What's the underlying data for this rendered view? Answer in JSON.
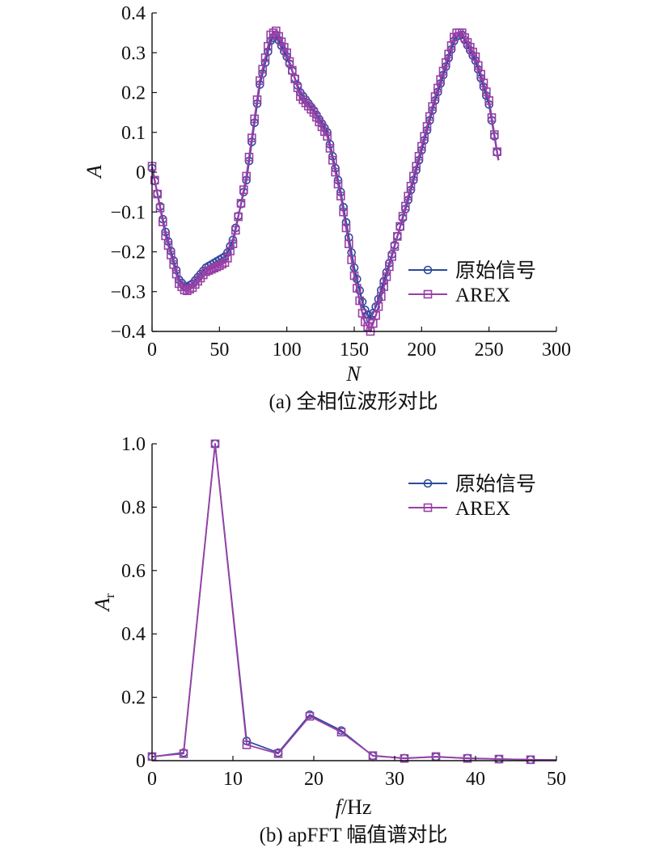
{
  "chart_data": [
    {
      "type": "line",
      "caption": "(a) 全相位波形对比",
      "xlabel": "N",
      "ylabel": "A",
      "xlim": [
        0,
        300
      ],
      "ylim": [
        -0.4,
        0.4
      ],
      "xticks": [
        0,
        50,
        100,
        150,
        200,
        250,
        300
      ],
      "yticks": [
        -0.4,
        -0.3,
        -0.2,
        -0.1,
        0,
        0.1,
        0.2,
        0.3,
        0.4
      ],
      "xtick_labels": [
        "0",
        "50",
        "100",
        "150",
        "200",
        "250",
        "300"
      ],
      "ytick_labels": [
        "−0.4",
        "−0.3",
        "−0.2",
        "−0.1",
        "0",
        "0.1",
        "0.2",
        "0.3",
        "0.4"
      ],
      "legend": "center-right",
      "grid": false,
      "series": [
        {
          "name": "原始信号",
          "color": "#2a4a9c",
          "marker": "circle",
          "x": [
            0,
            10,
            20,
            25,
            30,
            40,
            50,
            55,
            60,
            70,
            80,
            88,
            92,
            100,
            110,
            120,
            130,
            140,
            150,
            157,
            162,
            167,
            175,
            190,
            210,
            225,
            230,
            240,
            250,
            257
          ],
          "y": [
            0.01,
            -0.15,
            -0.27,
            -0.29,
            -0.28,
            -0.24,
            -0.22,
            -0.21,
            -0.17,
            -0.02,
            0.22,
            0.33,
            0.345,
            0.29,
            0.2,
            0.155,
            0.1,
            -0.05,
            -0.24,
            -0.34,
            -0.37,
            -0.33,
            -0.24,
            -0.07,
            0.18,
            0.34,
            0.345,
            0.28,
            0.17,
            0.03
          ]
        },
        {
          "name": "AREX",
          "color": "#9a3fa6",
          "marker": "square",
          "x": [
            0,
            10,
            20,
            25,
            30,
            40,
            50,
            55,
            60,
            70,
            80,
            88,
            92,
            100,
            110,
            120,
            130,
            140,
            150,
            157,
            162,
            167,
            175,
            190,
            210,
            225,
            230,
            240,
            250,
            257
          ],
          "y": [
            0.015,
            -0.16,
            -0.28,
            -0.3,
            -0.29,
            -0.25,
            -0.235,
            -0.225,
            -0.18,
            -0.01,
            0.23,
            0.345,
            0.355,
            0.3,
            0.19,
            0.15,
            0.09,
            -0.06,
            -0.26,
            -0.37,
            -0.4,
            -0.35,
            -0.25,
            -0.06,
            0.19,
            0.35,
            0.35,
            0.29,
            0.18,
            0.03
          ]
        }
      ]
    },
    {
      "type": "line",
      "caption": "(b) apFFT 幅值谱对比",
      "xlabel": "f/Hz",
      "ylabel": "Ar",
      "xlim": [
        0,
        50
      ],
      "ylim": [
        0,
        1.0
      ],
      "xticks": [
        0,
        10,
        20,
        30,
        40,
        50
      ],
      "yticks": [
        0,
        0.2,
        0.4,
        0.6,
        0.8,
        1.0
      ],
      "xtick_labels": [
        "0",
        "10",
        "20",
        "30",
        "40",
        "50"
      ],
      "ytick_labels": [
        "0",
        "0.2",
        "0.4",
        "0.6",
        "0.8",
        "1.0"
      ],
      "legend": "top-right",
      "grid": false,
      "series": [
        {
          "name": "原始信号",
          "color": "#2a4a9c",
          "marker": "circle",
          "x": [
            0,
            3.9,
            7.8,
            11.7,
            15.6,
            19.5,
            23.4,
            27.3,
            31.2,
            35.1,
            39,
            42.9,
            46.8,
            50
          ],
          "y": [
            0.012,
            0.025,
            1.0,
            0.062,
            0.025,
            0.145,
            0.095,
            0.015,
            0.008,
            0.012,
            0.008,
            0.005,
            0.003,
            0.002
          ]
        },
        {
          "name": "AREX",
          "color": "#9a3fa6",
          "marker": "square",
          "x": [
            0,
            3.9,
            7.8,
            11.7,
            15.6,
            19.5,
            23.4,
            27.3,
            31.2,
            35.1,
            39,
            42.9,
            46.8,
            50
          ],
          "y": [
            0.013,
            0.022,
            1.0,
            0.05,
            0.022,
            0.14,
            0.09,
            0.016,
            0.007,
            0.013,
            0.007,
            0.005,
            0.003,
            0.002
          ]
        }
      ]
    }
  ]
}
